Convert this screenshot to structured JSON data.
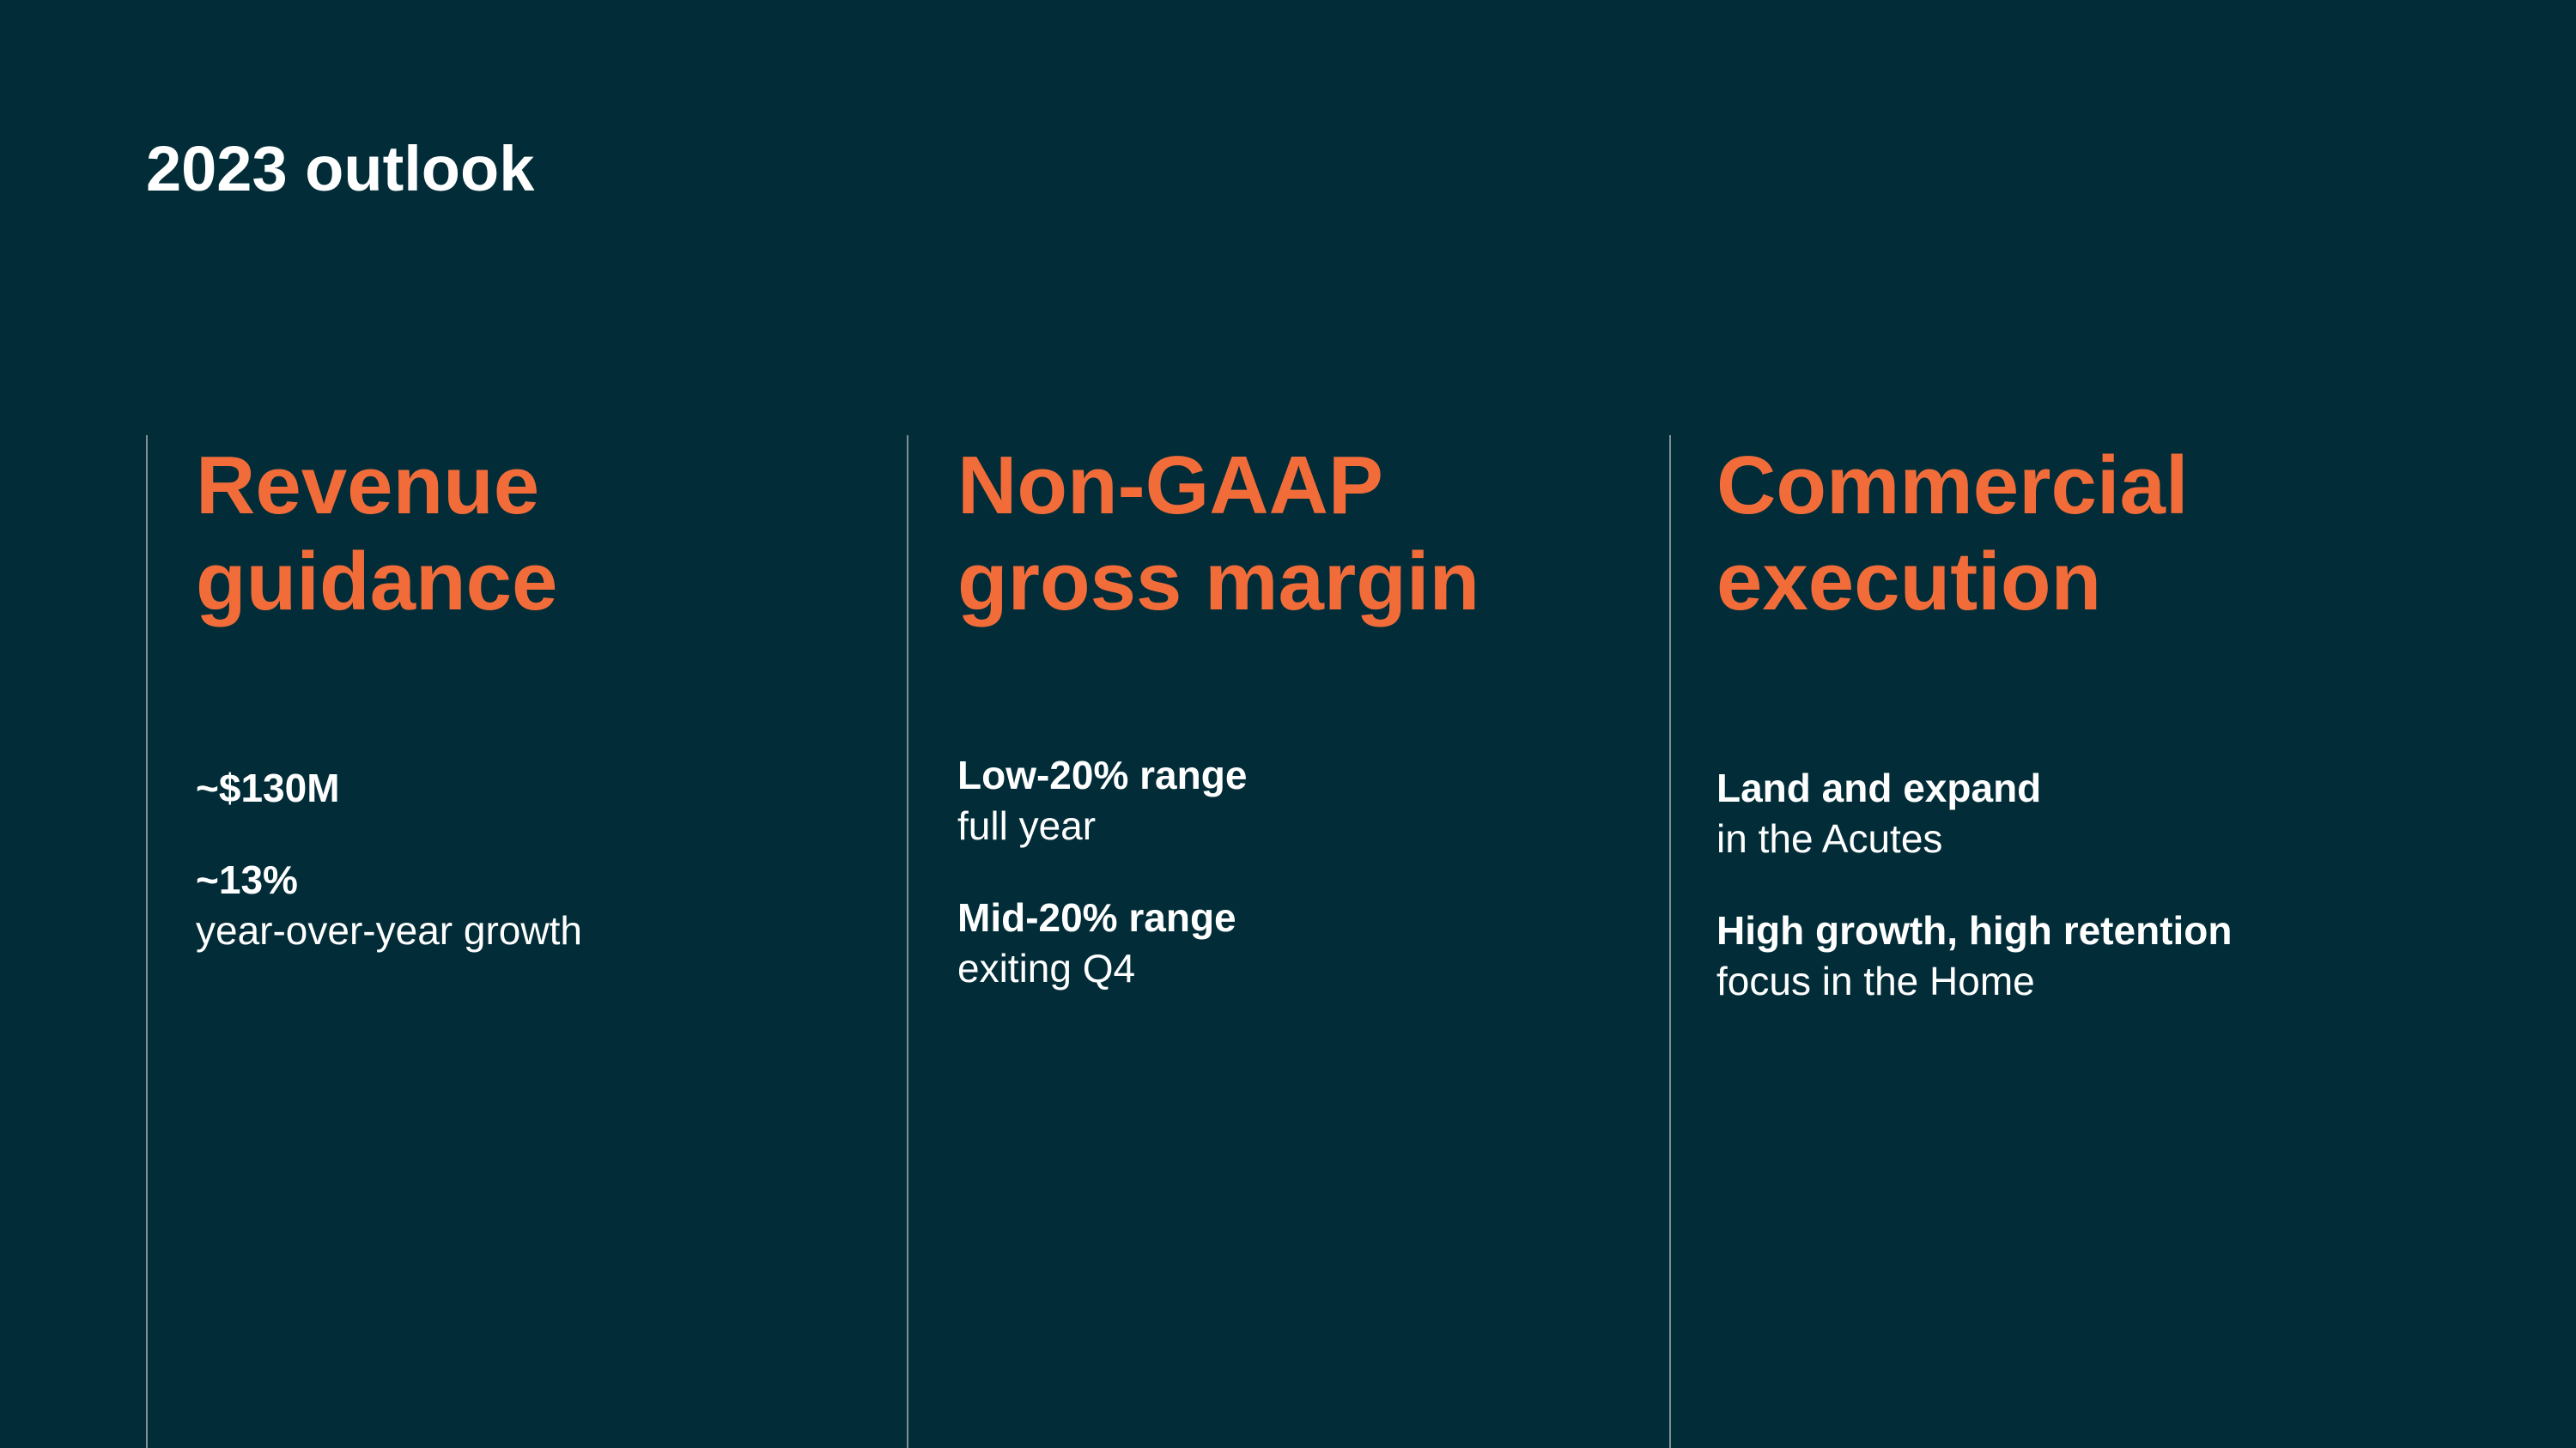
{
  "title": "2023 outlook",
  "columns": [
    {
      "heading": [
        "Revenue",
        "guidance"
      ],
      "items": [
        {
          "bold": "~$130M"
        },
        {
          "bold": "~13%",
          "text": "year-over-year growth"
        }
      ]
    },
    {
      "heading": [
        "Non-GAAP",
        "gross margin"
      ],
      "items": [
        {
          "bold": "Low-20% range",
          "text": "full year"
        },
        {
          "bold": "Mid-20% range",
          "text": "exiting Q4"
        }
      ]
    },
    {
      "heading": [
        "Commercial",
        "execution"
      ],
      "items": [
        {
          "bold": "Land and expand",
          "text": "in the Acutes"
        },
        {
          "bold": "High growth, high retention",
          "text": "focus in the Home"
        }
      ]
    }
  ]
}
